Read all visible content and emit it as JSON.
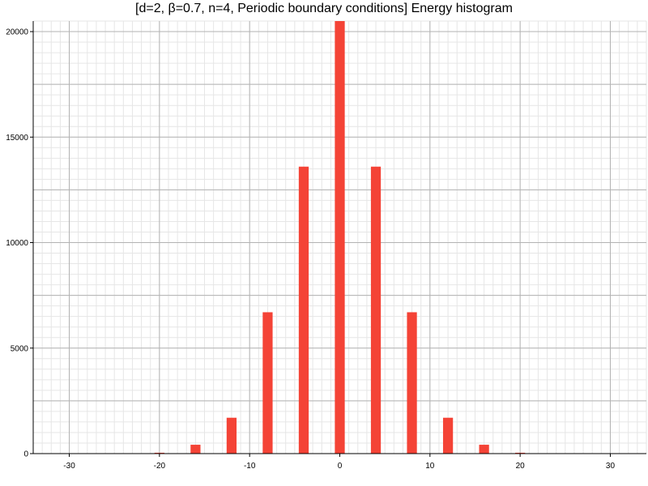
{
  "chart_data": {
    "type": "bar",
    "title": "[d=2, β=0.7, n=4, Periodic boundary conditions] Energy histogram",
    "xlabel": "",
    "ylabel": "",
    "xlim": [
      -34,
      34
    ],
    "ylim": [
      0,
      20500
    ],
    "x_ticks": [
      -30,
      -20,
      -10,
      0,
      10,
      20,
      30
    ],
    "y_ticks": [
      0,
      5000,
      10000,
      15000,
      20000
    ],
    "bar_width": 1.1,
    "grid": true,
    "legend": "none",
    "bar_color": "#f44336",
    "x": [
      -20,
      -16,
      -12,
      -8,
      -4,
      0,
      4,
      8,
      12,
      16,
      20
    ],
    "values": [
      40,
      420,
      1700,
      6700,
      13600,
      20500,
      13600,
      6700,
      1700,
      420,
      40
    ]
  }
}
